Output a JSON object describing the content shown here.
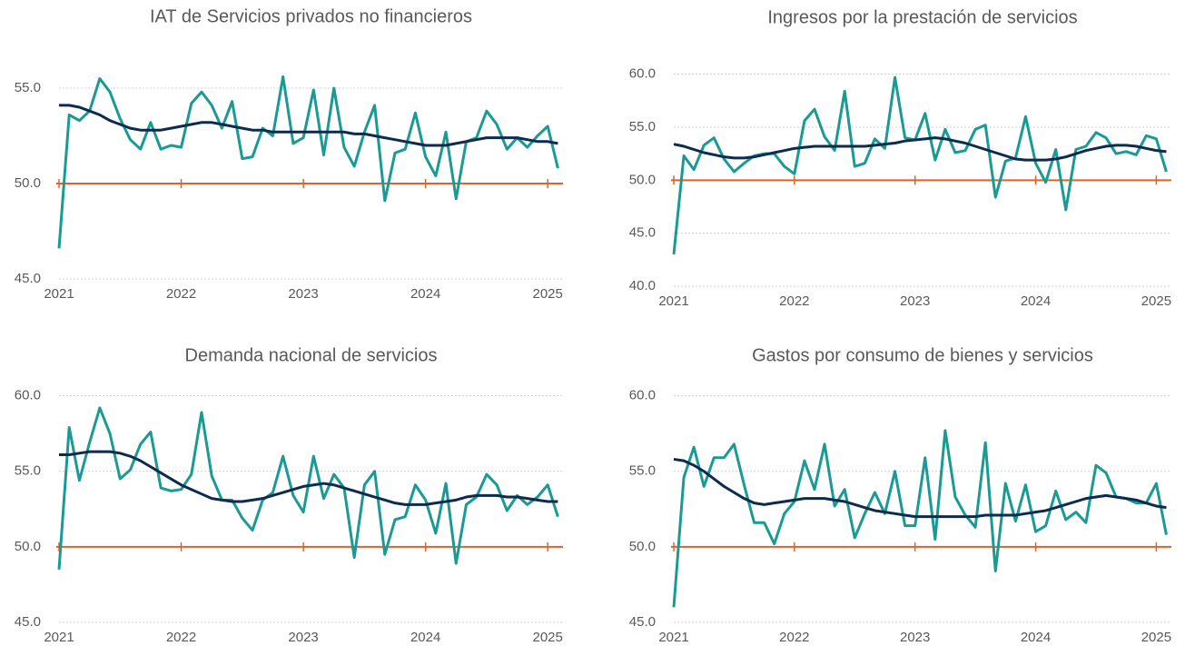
{
  "chart_data": [
    {
      "type": "line",
      "title": "IAT de Servicios privados no financieros",
      "categories": [
        "2021",
        null,
        null,
        null,
        null,
        null,
        null,
        null,
        null,
        null,
        null,
        null,
        "2022",
        null,
        null,
        null,
        null,
        null,
        null,
        null,
        null,
        null,
        null,
        null,
        "2023",
        null,
        null,
        null,
        null,
        null,
        null,
        null,
        null,
        null,
        null,
        null,
        "2024",
        null,
        null,
        null,
        null,
        null,
        null,
        null,
        null,
        null,
        null,
        null,
        "2025",
        null
      ],
      "series": [
        {
          "color": "#1a9a94",
          "values": [
            46.6,
            53.6,
            53.3,
            53.8,
            55.5,
            54.8,
            53.4,
            52.3,
            51.8,
            53.2,
            51.8,
            52.0,
            51.9,
            54.2,
            54.8,
            54.1,
            52.9,
            54.3,
            51.3,
            51.4,
            52.9,
            52.5,
            55.6,
            52.1,
            52.4,
            54.9,
            51.5,
            55.0,
            51.9,
            50.9,
            52.7,
            54.1,
            49.1,
            51.6,
            51.8,
            53.7,
            51.4,
            50.4,
            52.7,
            49.2,
            52.2,
            52.4,
            53.8,
            53.1,
            51.8,
            52.4,
            51.9,
            52.5,
            53.0,
            50.8
          ]
        },
        {
          "color": "#0d2b4e",
          "values": [
            54.1,
            54.1,
            54.0,
            53.8,
            53.6,
            53.3,
            53.1,
            52.9,
            52.8,
            52.8,
            52.8,
            52.9,
            53.0,
            53.1,
            53.2,
            53.2,
            53.1,
            53.0,
            52.9,
            52.8,
            52.8,
            52.7,
            52.7,
            52.7,
            52.7,
            52.7,
            52.7,
            52.7,
            52.7,
            52.6,
            52.6,
            52.5,
            52.4,
            52.3,
            52.2,
            52.1,
            52.0,
            52.0,
            52.0,
            52.1,
            52.2,
            52.3,
            52.4,
            52.4,
            52.4,
            52.4,
            52.3,
            52.2,
            52.2,
            52.1
          ]
        }
      ],
      "reference_line": {
        "value": 50,
        "color": "#e0622a"
      },
      "ylim": [
        45,
        57.5
      ],
      "yticks": [
        {
          "value": 45,
          "label": "45.0"
        },
        {
          "value": 50,
          "label": "50.0"
        },
        {
          "value": 55,
          "label": "55.0"
        }
      ],
      "grid": true
    },
    {
      "type": "line",
      "title": "Ingresos por la prestación de servicios",
      "categories": [
        "2021",
        null,
        null,
        null,
        null,
        null,
        null,
        null,
        null,
        null,
        null,
        null,
        "2022",
        null,
        null,
        null,
        null,
        null,
        null,
        null,
        null,
        null,
        null,
        null,
        "2023",
        null,
        null,
        null,
        null,
        null,
        null,
        null,
        null,
        null,
        null,
        null,
        "2024",
        null,
        null,
        null,
        null,
        null,
        null,
        null,
        null,
        null,
        null,
        null,
        "2025",
        null
      ],
      "series": [
        {
          "color": "#1a9a94",
          "values": [
            43.0,
            52.3,
            51.0,
            53.3,
            54.0,
            52.0,
            50.8,
            51.6,
            52.3,
            52.5,
            52.5,
            51.3,
            50.6,
            55.6,
            56.7,
            54.1,
            52.8,
            58.4,
            51.3,
            51.6,
            53.9,
            53.0,
            59.7,
            54.0,
            53.8,
            56.3,
            51.9,
            54.8,
            52.6,
            52.8,
            54.8,
            55.2,
            48.4,
            51.8,
            52.1,
            56.0,
            51.6,
            49.8,
            52.9,
            47.2,
            52.9,
            53.2,
            54.5,
            54.0,
            52.5,
            52.7,
            52.4,
            54.2,
            53.9,
            50.8
          ]
        },
        {
          "color": "#0d2b4e",
          "values": [
            53.4,
            53.2,
            52.9,
            52.6,
            52.4,
            52.2,
            52.1,
            52.1,
            52.2,
            52.4,
            52.6,
            52.8,
            53.0,
            53.1,
            53.2,
            53.2,
            53.2,
            53.2,
            53.2,
            53.2,
            53.3,
            53.4,
            53.5,
            53.7,
            53.8,
            53.9,
            54.0,
            53.9,
            53.7,
            53.5,
            53.2,
            52.9,
            52.6,
            52.3,
            52.0,
            51.9,
            51.9,
            51.9,
            52.0,
            52.2,
            52.5,
            52.8,
            53.0,
            53.2,
            53.3,
            53.3,
            53.2,
            53.0,
            52.8,
            52.7
          ]
        }
      ],
      "reference_line": {
        "value": 50,
        "color": "#e0622a"
      },
      "ylim": [
        40,
        61
      ],
      "yticks": [
        {
          "value": 40,
          "label": "40.0"
        },
        {
          "value": 45,
          "label": "45.0"
        },
        {
          "value": 50,
          "label": "50.0"
        },
        {
          "value": 55,
          "label": "55.0"
        },
        {
          "value": 60,
          "label": "60.0"
        }
      ],
      "grid": true
    },
    {
      "type": "line",
      "title": "Demanda nacional de servicios",
      "categories": [
        "2021",
        null,
        null,
        null,
        null,
        null,
        null,
        null,
        null,
        null,
        null,
        null,
        "2022",
        null,
        null,
        null,
        null,
        null,
        null,
        null,
        null,
        null,
        null,
        null,
        "2023",
        null,
        null,
        null,
        null,
        null,
        null,
        null,
        null,
        null,
        null,
        null,
        "2024",
        null,
        null,
        null,
        null,
        null,
        null,
        null,
        null,
        null,
        null,
        null,
        "2025",
        null
      ],
      "series": [
        {
          "color": "#1a9a94",
          "values": [
            48.5,
            57.9,
            54.4,
            56.9,
            59.2,
            57.5,
            54.5,
            55.1,
            56.8,
            57.6,
            53.9,
            53.7,
            53.8,
            54.8,
            58.9,
            54.7,
            53.1,
            53.1,
            51.9,
            51.1,
            53.1,
            53.6,
            56.0,
            53.4,
            52.3,
            56.0,
            53.2,
            54.8,
            53.9,
            49.3,
            54.1,
            55.0,
            49.5,
            51.8,
            52.0,
            54.1,
            53.1,
            50.9,
            54.2,
            48.9,
            52.8,
            53.3,
            54.8,
            54.1,
            52.4,
            53.4,
            52.8,
            53.3,
            54.1,
            52.0
          ]
        },
        {
          "color": "#0d2b4e",
          "values": [
            56.1,
            56.1,
            56.2,
            56.3,
            56.3,
            56.3,
            56.2,
            56.0,
            55.7,
            55.3,
            54.9,
            54.5,
            54.1,
            53.8,
            53.5,
            53.2,
            53.1,
            53.0,
            53.0,
            53.1,
            53.2,
            53.4,
            53.6,
            53.8,
            54.0,
            54.1,
            54.2,
            54.1,
            53.9,
            53.7,
            53.5,
            53.3,
            53.1,
            52.9,
            52.8,
            52.8,
            52.8,
            52.9,
            53.0,
            53.1,
            53.3,
            53.4,
            53.4,
            53.4,
            53.3,
            53.3,
            53.2,
            53.1,
            53.0,
            53.0
          ]
        }
      ],
      "reference_line": {
        "value": 50,
        "color": "#e0622a"
      },
      "ylim": [
        45,
        61
      ],
      "yticks": [
        {
          "value": 45,
          "label": "45.0"
        },
        {
          "value": 50,
          "label": "50.0"
        },
        {
          "value": 55,
          "label": "55.0"
        },
        {
          "value": 60,
          "label": "60.0"
        }
      ],
      "grid": true
    },
    {
      "type": "line",
      "title": "Gastos por consumo de bienes y servicios",
      "categories": [
        "2021",
        null,
        null,
        null,
        null,
        null,
        null,
        null,
        null,
        null,
        null,
        null,
        "2022",
        null,
        null,
        null,
        null,
        null,
        null,
        null,
        null,
        null,
        null,
        null,
        "2023",
        null,
        null,
        null,
        null,
        null,
        null,
        null,
        null,
        null,
        null,
        null,
        "2024",
        null,
        null,
        null,
        null,
        null,
        null,
        null,
        null,
        null,
        null,
        null,
        "2025",
        null
      ],
      "series": [
        {
          "color": "#1a9a94",
          "values": [
            46.0,
            54.6,
            56.6,
            54.0,
            55.9,
            55.9,
            56.8,
            54.1,
            51.6,
            51.6,
            50.2,
            52.2,
            53.0,
            55.7,
            53.8,
            56.8,
            52.7,
            53.8,
            50.6,
            52.2,
            53.6,
            52.2,
            55.0,
            51.4,
            51.4,
            55.9,
            50.5,
            57.7,
            53.3,
            52.1,
            51.3,
            56.9,
            48.4,
            54.2,
            51.7,
            54.1,
            51.0,
            51.4,
            53.7,
            51.8,
            52.3,
            51.6,
            55.4,
            54.9,
            53.3,
            53.2,
            52.9,
            52.9,
            54.2,
            50.8
          ]
        },
        {
          "color": "#0d2b4e",
          "values": [
            55.8,
            55.7,
            55.4,
            55.0,
            54.5,
            54.0,
            53.6,
            53.2,
            52.9,
            52.8,
            52.9,
            53.0,
            53.1,
            53.2,
            53.2,
            53.2,
            53.1,
            53.0,
            52.8,
            52.6,
            52.4,
            52.3,
            52.2,
            52.1,
            52.0,
            52.0,
            52.0,
            52.0,
            52.0,
            52.0,
            52.0,
            52.1,
            52.1,
            52.1,
            52.1,
            52.2,
            52.3,
            52.4,
            52.6,
            52.8,
            53.0,
            53.2,
            53.3,
            53.4,
            53.3,
            53.2,
            53.1,
            52.9,
            52.7,
            52.6
          ]
        }
      ],
      "reference_line": {
        "value": 50,
        "color": "#e0622a"
      },
      "ylim": [
        45,
        61
      ],
      "yticks": [
        {
          "value": 45,
          "label": "45.0"
        },
        {
          "value": 50,
          "label": "50.0"
        },
        {
          "value": 55,
          "label": "55.0"
        },
        {
          "value": 60,
          "label": "60.0"
        }
      ],
      "grid": true
    }
  ]
}
